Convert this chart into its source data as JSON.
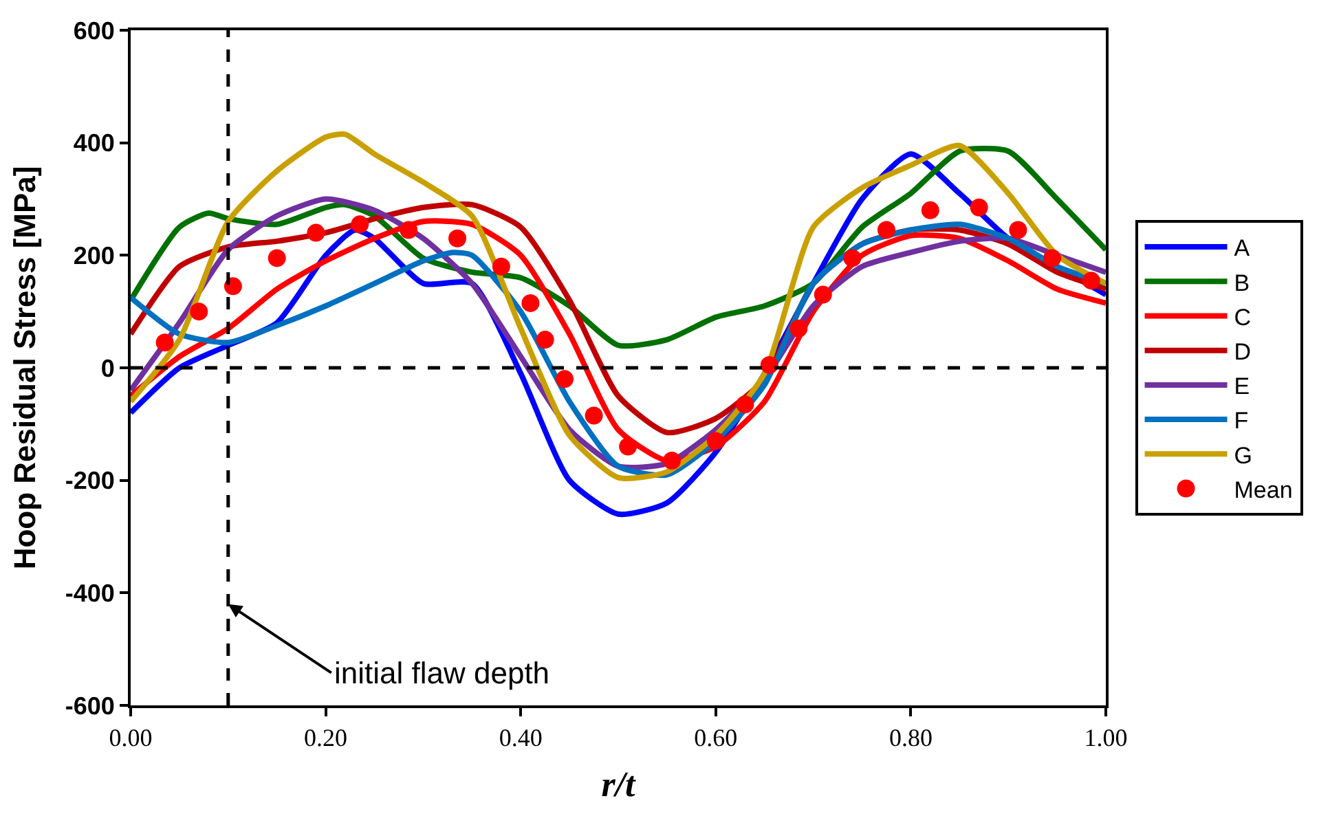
{
  "chart_data": {
    "type": "line",
    "xlabel": "r/t",
    "ylabel": "Hoop Residual Stress [MPa]",
    "xlim": [
      0,
      1
    ],
    "xticks": [
      {
        "value": 0,
        "label": "0.00"
      },
      {
        "value": 0.2,
        "label": "0.20"
      },
      {
        "value": 0.4,
        "label": "0.40"
      },
      {
        "value": 0.6,
        "label": "0.60"
      },
      {
        "value": 0.8,
        "label": "0.80"
      },
      {
        "value": 1,
        "label": "1.00"
      }
    ],
    "ylim": [
      -600,
      600
    ],
    "yticks": [
      -600,
      -400,
      -200,
      0,
      200,
      400,
      600
    ],
    "legend": "right",
    "marker": "none",
    "line_style": "solid",
    "series": [
      {
        "name": "A",
        "color": "#0000ff",
        "x": [
          0,
          0.05,
          0.1,
          0.15,
          0.2,
          0.23,
          0.25,
          0.3,
          0.35,
          0.4,
          0.45,
          0.5,
          0.55,
          0.6,
          0.65,
          0.7,
          0.75,
          0.8,
          0.85,
          0.9,
          0.95,
          1.0
        ],
        "values": [
          -80,
          0,
          40,
          80,
          200,
          245,
          230,
          150,
          150,
          -10,
          -200,
          -260,
          -240,
          -150,
          -10,
          150,
          300,
          380,
          310,
          230,
          180,
          130
        ]
      },
      {
        "name": "B",
        "color": "#007000",
        "x": [
          0,
          0.05,
          0.08,
          0.1,
          0.15,
          0.2,
          0.22,
          0.25,
          0.3,
          0.35,
          0.4,
          0.45,
          0.5,
          0.55,
          0.6,
          0.65,
          0.7,
          0.75,
          0.8,
          0.85,
          0.9,
          0.95,
          1.0
        ],
        "values": [
          120,
          250,
          275,
          265,
          255,
          285,
          290,
          270,
          195,
          170,
          160,
          110,
          40,
          50,
          90,
          110,
          150,
          250,
          310,
          385,
          385,
          300,
          210
        ]
      },
      {
        "name": "C",
        "color": "#ff0000",
        "x": [
          0,
          0.05,
          0.1,
          0.15,
          0.2,
          0.25,
          0.3,
          0.35,
          0.4,
          0.45,
          0.5,
          0.55,
          0.6,
          0.65,
          0.7,
          0.75,
          0.8,
          0.85,
          0.9,
          0.95,
          1.0
        ],
        "values": [
          -50,
          20,
          70,
          140,
          190,
          230,
          260,
          255,
          200,
          60,
          -110,
          -165,
          -140,
          -60,
          100,
          200,
          235,
          230,
          190,
          140,
          115
        ]
      },
      {
        "name": "D",
        "color": "#c00000",
        "x": [
          0,
          0.05,
          0.1,
          0.15,
          0.2,
          0.25,
          0.3,
          0.35,
          0.4,
          0.45,
          0.5,
          0.55,
          0.6,
          0.65,
          0.7,
          0.75,
          0.8,
          0.85,
          0.9,
          0.95,
          1.0
        ],
        "values": [
          60,
          180,
          215,
          225,
          240,
          265,
          285,
          290,
          250,
          120,
          -50,
          -115,
          -90,
          -20,
          150,
          220,
          245,
          245,
          220,
          170,
          140
        ]
      },
      {
        "name": "E",
        "color": "#7030a0",
        "x": [
          0,
          0.05,
          0.1,
          0.15,
          0.2,
          0.25,
          0.3,
          0.35,
          0.4,
          0.45,
          0.5,
          0.55,
          0.6,
          0.65,
          0.7,
          0.75,
          0.8,
          0.85,
          0.9,
          0.95,
          1.0
        ],
        "values": [
          -40,
          80,
          210,
          270,
          300,
          280,
          230,
          150,
          20,
          -110,
          -175,
          -170,
          -110,
          -20,
          110,
          180,
          205,
          225,
          230,
          200,
          170
        ]
      },
      {
        "name": "F",
        "color": "#0070c0",
        "x": [
          0,
          0.05,
          0.1,
          0.15,
          0.2,
          0.25,
          0.3,
          0.33,
          0.35,
          0.4,
          0.45,
          0.5,
          0.55,
          0.6,
          0.65,
          0.7,
          0.75,
          0.8,
          0.85,
          0.9,
          0.95,
          1.0
        ],
        "values": [
          125,
          60,
          45,
          75,
          110,
          150,
          190,
          205,
          200,
          100,
          -60,
          -175,
          -190,
          -130,
          -30,
          150,
          220,
          245,
          255,
          230,
          180,
          150
        ]
      },
      {
        "name": "G",
        "color": "#c9a000",
        "x": [
          0,
          0.05,
          0.1,
          0.15,
          0.2,
          0.22,
          0.25,
          0.3,
          0.35,
          0.4,
          0.45,
          0.5,
          0.55,
          0.6,
          0.65,
          0.7,
          0.75,
          0.8,
          0.85,
          0.9,
          0.95,
          1.0
        ],
        "values": [
          -60,
          50,
          260,
          350,
          410,
          415,
          380,
          330,
          270,
          70,
          -120,
          -195,
          -185,
          -120,
          -10,
          250,
          320,
          360,
          395,
          310,
          200,
          150
        ]
      },
      {
        "name": "Mean",
        "color": "#ff0000",
        "type": "scatter",
        "marker": "circle",
        "x": [
          0.035,
          0.07,
          0.105,
          0.15,
          0.19,
          0.235,
          0.285,
          0.335,
          0.38,
          0.41,
          0.425,
          0.445,
          0.475,
          0.51,
          0.555,
          0.6,
          0.63,
          0.655,
          0.685,
          0.71,
          0.74,
          0.775,
          0.82,
          0.87,
          0.91,
          0.945,
          0.985
        ],
        "values": [
          45,
          100,
          145,
          195,
          240,
          255,
          245,
          230,
          180,
          115,
          50,
          -20,
          -85,
          -140,
          -165,
          -130,
          -65,
          5,
          70,
          130,
          195,
          245,
          280,
          285,
          245,
          195,
          155
        ]
      }
    ],
    "ref_lines": [
      {
        "axis": "x",
        "value": 0.1,
        "line_style": "dashed",
        "color": "#000000"
      },
      {
        "axis": "y",
        "value": 0,
        "line_style": "dashed",
        "color": "#000000"
      }
    ],
    "annotations": [
      {
        "text": "initial flaw depth",
        "x": 0.1,
        "y": -420
      }
    ]
  }
}
